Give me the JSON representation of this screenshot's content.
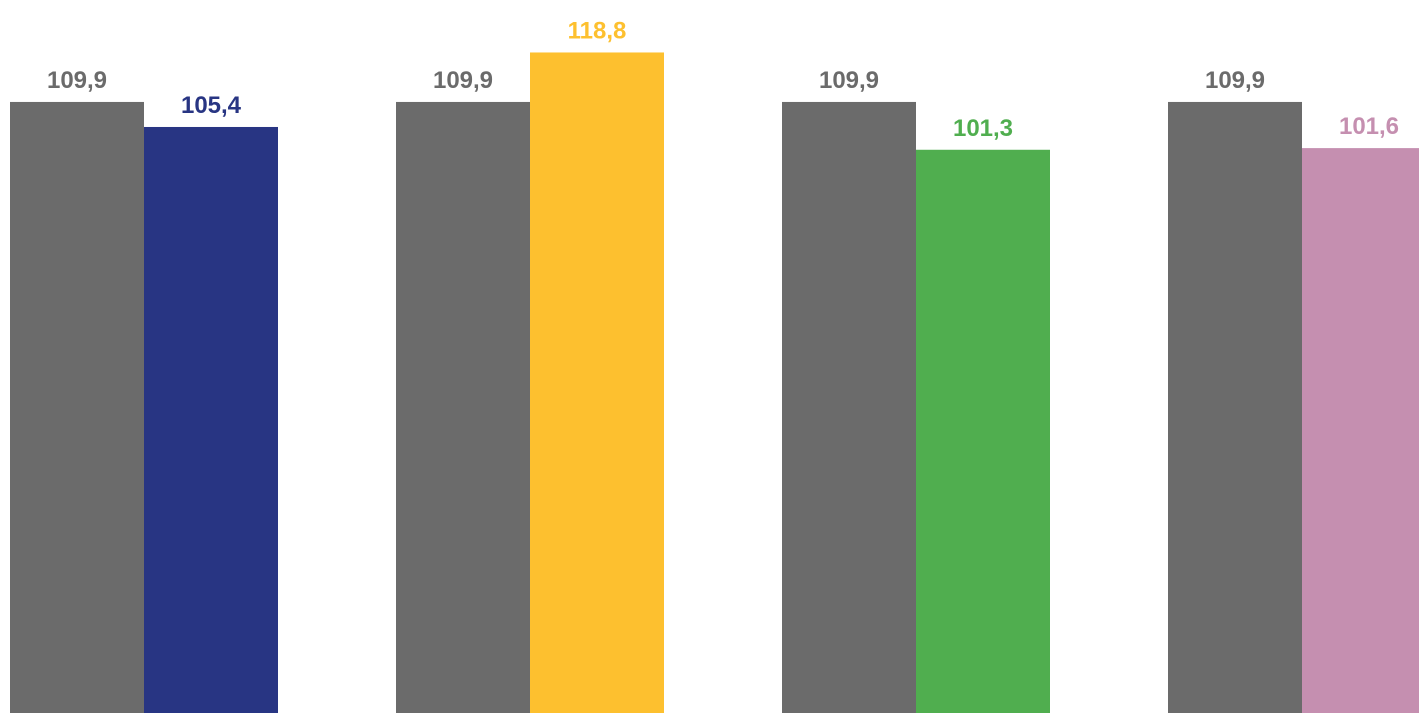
{
  "chart_data": {
    "type": "bar",
    "groups": [
      {
        "bars": [
          {
            "value": 109.9,
            "label": "109,9",
            "color": "#6b6b6b"
          },
          {
            "value": 105.4,
            "label": "105,4",
            "color": "#283583"
          }
        ]
      },
      {
        "bars": [
          {
            "value": 109.9,
            "label": "109,9",
            "color": "#6b6b6b"
          },
          {
            "value": 118.8,
            "label": "118,8",
            "color": "#fdc02f"
          }
        ]
      },
      {
        "bars": [
          {
            "value": 109.9,
            "label": "109,9",
            "color": "#6b6b6b"
          },
          {
            "value": 101.3,
            "label": "101,3",
            "color": "#50ae4f"
          }
        ]
      },
      {
        "bars": [
          {
            "value": 109.9,
            "label": "109,9",
            "color": "#6b6b6b"
          },
          {
            "value": 101.6,
            "label": "101,6",
            "color": "#c58fb0"
          }
        ]
      }
    ],
    "label_colors": [
      "#6b6b6b",
      "#283583",
      "#fdc02f",
      "#50ae4f",
      "#c58fb0"
    ],
    "grid": false,
    "legend": "none"
  }
}
